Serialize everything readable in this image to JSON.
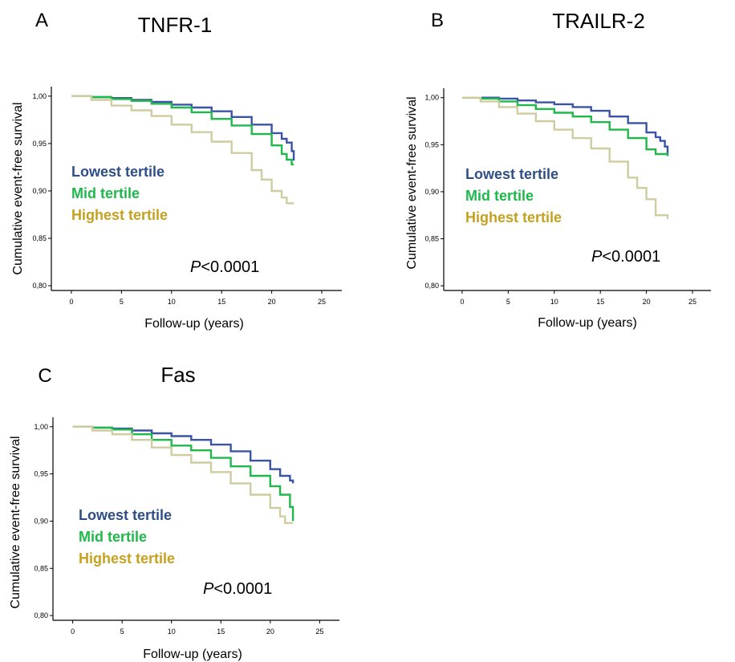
{
  "chart_data": [
    {
      "type": "line",
      "panel_letter": "A",
      "title": "TNFR-1",
      "xlabel": "Follow-up (years)",
      "ylabel": "Cumulative event-free survival",
      "xlim": [
        -2,
        27
      ],
      "ylim": [
        0.795,
        1.01
      ],
      "xticks": [
        "0",
        "5",
        "10",
        "15",
        "20",
        "25"
      ],
      "yticks": [
        "0,80",
        "0,85",
        "0,90",
        "0,95",
        "1,00"
      ],
      "annotation_italic": "P",
      "annotation_rest": "<0.0001",
      "grid": false,
      "legend_placement": "inside-left",
      "series": [
        {
          "name": "Lowest tertile",
          "color": "#3b53a6",
          "label_color": "#2e4f86",
          "x": [
            0,
            2,
            4,
            6,
            8,
            10,
            12,
            14,
            16,
            18,
            20,
            21,
            21.5,
            22,
            22.2
          ],
          "y": [
            1.0,
            0.999,
            0.998,
            0.996,
            0.994,
            0.991,
            0.988,
            0.984,
            0.978,
            0.97,
            0.961,
            0.955,
            0.951,
            0.942,
            0.932
          ]
        },
        {
          "name": "Mid tertile",
          "color": "#1fb84a",
          "label_color": "#1fb84a",
          "x": [
            0,
            2,
            4,
            6,
            8,
            10,
            12,
            14,
            16,
            18,
            20,
            21,
            21.5,
            22,
            22.2
          ],
          "y": [
            1.0,
            0.999,
            0.997,
            0.995,
            0.992,
            0.988,
            0.983,
            0.976,
            0.969,
            0.96,
            0.948,
            0.939,
            0.933,
            0.928,
            0.928
          ]
        },
        {
          "name": "Highest tertile",
          "color": "#cfcca0",
          "label_color": "#c5a11f",
          "x": [
            0,
            2,
            4,
            6,
            8,
            10,
            12,
            14,
            16,
            18,
            19,
            20,
            21,
            21.5,
            22.2
          ],
          "y": [
            1.0,
            0.996,
            0.99,
            0.985,
            0.979,
            0.97,
            0.962,
            0.952,
            0.94,
            0.922,
            0.912,
            0.9,
            0.893,
            0.887,
            0.887
          ]
        }
      ]
    },
    {
      "type": "line",
      "panel_letter": "B",
      "title": "TRAILR-2",
      "xlabel": "Follow-up (years)",
      "ylabel": "Cumulative event-free survival",
      "xlim": [
        -2,
        27
      ],
      "ylim": [
        0.795,
        1.01
      ],
      "xticks": [
        "0",
        "5",
        "10",
        "15",
        "20",
        "25"
      ],
      "yticks": [
        "0,80",
        "0,85",
        "0,90",
        "0,95",
        "1,00"
      ],
      "annotation_italic": "P",
      "annotation_rest": "<0.0001",
      "grid": false,
      "legend_placement": "inside-left",
      "series": [
        {
          "name": "Lowest tertile",
          "color": "#3b53a6",
          "label_color": "#2e4f86",
          "x": [
            0,
            2,
            4,
            6,
            8,
            10,
            12,
            14,
            16,
            18,
            20,
            21,
            21.5,
            22,
            22.3
          ],
          "y": [
            1.0,
            1.0,
            0.999,
            0.997,
            0.995,
            0.993,
            0.99,
            0.986,
            0.98,
            0.973,
            0.963,
            0.958,
            0.954,
            0.948,
            0.938
          ]
        },
        {
          "name": "Mid tertile",
          "color": "#1fb84a",
          "label_color": "#1fb84a",
          "x": [
            0,
            2,
            4,
            6,
            8,
            10,
            12,
            14,
            16,
            18,
            20,
            21,
            22,
            22.3
          ],
          "y": [
            1.0,
            0.999,
            0.996,
            0.992,
            0.988,
            0.984,
            0.98,
            0.974,
            0.966,
            0.957,
            0.945,
            0.94,
            0.94,
            0.938
          ]
        },
        {
          "name": "Highest tertile",
          "color": "#cfcca0",
          "label_color": "#c5a11f",
          "x": [
            0,
            2,
            4,
            6,
            8,
            10,
            12,
            14,
            16,
            18,
            19,
            20,
            21,
            22.3
          ],
          "y": [
            1.0,
            0.996,
            0.99,
            0.983,
            0.975,
            0.966,
            0.957,
            0.946,
            0.932,
            0.915,
            0.904,
            0.892,
            0.875,
            0.871
          ]
        }
      ]
    },
    {
      "type": "line",
      "panel_letter": "C",
      "title": "Fas",
      "xlabel": "Follow-up (years)",
      "ylabel": "Cumulative event-free survival",
      "xlim": [
        -2,
        27
      ],
      "ylim": [
        0.795,
        1.01
      ],
      "xticks": [
        "0",
        "5",
        "10",
        "15",
        "20",
        "25"
      ],
      "yticks": [
        "0,80",
        "0,85",
        "0,90",
        "0,95",
        "1,00"
      ],
      "annotation_italic": "P",
      "annotation_rest": "<0.0001",
      "grid": false,
      "legend_placement": "inside-left",
      "series": [
        {
          "name": "Lowest tertile",
          "color": "#3b53a6",
          "label_color": "#2e4f86",
          "x": [
            0,
            2,
            4,
            6,
            8,
            10,
            12,
            14,
            16,
            18,
            20,
            21,
            22,
            22.3
          ],
          "y": [
            1.0,
            0.999,
            0.998,
            0.996,
            0.993,
            0.99,
            0.986,
            0.981,
            0.974,
            0.964,
            0.955,
            0.948,
            0.943,
            0.94
          ]
        },
        {
          "name": "Mid tertile",
          "color": "#1fb84a",
          "label_color": "#1fb84a",
          "x": [
            0,
            2,
            4,
            6,
            8,
            10,
            12,
            14,
            16,
            18,
            20,
            21,
            22,
            22.3
          ],
          "y": [
            1.0,
            0.999,
            0.997,
            0.992,
            0.986,
            0.98,
            0.975,
            0.967,
            0.958,
            0.948,
            0.937,
            0.928,
            0.915,
            0.9
          ]
        },
        {
          "name": "Highest tertile",
          "color": "#cfcca0",
          "label_color": "#c5a11f",
          "x": [
            0,
            2,
            4,
            6,
            8,
            10,
            12,
            14,
            16,
            18,
            20,
            21,
            21.5,
            22.3
          ],
          "y": [
            1.0,
            0.996,
            0.992,
            0.986,
            0.978,
            0.97,
            0.962,
            0.952,
            0.94,
            0.928,
            0.914,
            0.905,
            0.898,
            0.898
          ]
        }
      ]
    }
  ]
}
